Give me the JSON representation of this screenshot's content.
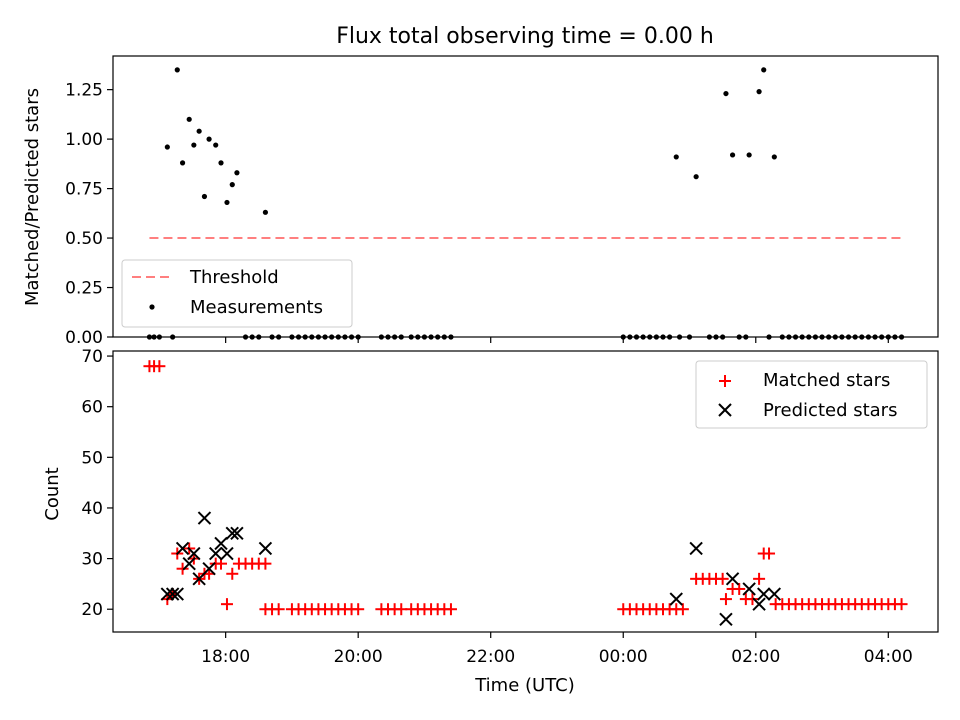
{
  "chart_data": [
    {
      "type": "scatter",
      "title": "Flux total observing time = 0.00 h",
      "xlabel": "",
      "ylabel": "Matched/Predicted stars",
      "xlim": [
        16.3,
        28.75
      ],
      "ylim": [
        0,
        1.42
      ],
      "x_ticks": [
        18,
        20,
        22,
        24,
        26,
        28
      ],
      "x_tick_labels": [],
      "y_ticks": [
        0.0,
        0.25,
        0.5,
        0.75,
        1.0,
        1.25
      ],
      "y_tick_labels": [
        "0.00",
        "0.25",
        "0.50",
        "0.75",
        "1.00",
        "1.25"
      ],
      "legend_position": "bottom-left",
      "threshold": {
        "name": "Threshold",
        "value": 0.5,
        "x_range": [
          16.85,
          28.2
        ],
        "color": "#ff7f7f"
      },
      "series": [
        {
          "name": "Measurements",
          "color": "#000000",
          "marker": "dot",
          "points": [
            [
              17.12,
              0.96
            ],
            [
              17.27,
              1.35
            ],
            [
              17.35,
              0.88
            ],
            [
              17.45,
              1.1
            ],
            [
              17.52,
              0.97
            ],
            [
              17.6,
              1.04
            ],
            [
              17.68,
              0.71
            ],
            [
              17.75,
              1.0
            ],
            [
              17.85,
              0.97
            ],
            [
              17.93,
              0.88
            ],
            [
              18.02,
              0.68
            ],
            [
              18.1,
              0.77
            ],
            [
              18.17,
              0.83
            ],
            [
              18.6,
              0.63
            ],
            [
              24.8,
              0.91
            ],
            [
              25.1,
              0.81
            ],
            [
              25.55,
              1.23
            ],
            [
              25.65,
              0.92
            ],
            [
              25.9,
              0.92
            ],
            [
              26.05,
              1.24
            ],
            [
              26.12,
              1.35
            ],
            [
              26.28,
              0.91
            ],
            [
              16.85,
              0
            ],
            [
              16.92,
              0
            ],
            [
              17.0,
              0
            ],
            [
              17.2,
              0
            ],
            [
              18.3,
              0
            ],
            [
              18.4,
              0
            ],
            [
              18.5,
              0
            ],
            [
              18.7,
              0
            ],
            [
              18.8,
              0
            ],
            [
              19.0,
              0
            ],
            [
              19.1,
              0
            ],
            [
              19.2,
              0
            ],
            [
              19.3,
              0
            ],
            [
              19.4,
              0
            ],
            [
              19.5,
              0
            ],
            [
              19.6,
              0
            ],
            [
              19.7,
              0
            ],
            [
              19.8,
              0
            ],
            [
              19.9,
              0
            ],
            [
              20.0,
              0
            ],
            [
              20.35,
              0
            ],
            [
              20.45,
              0
            ],
            [
              20.55,
              0
            ],
            [
              20.65,
              0
            ],
            [
              20.8,
              0
            ],
            [
              20.9,
              0
            ],
            [
              21.0,
              0
            ],
            [
              21.1,
              0
            ],
            [
              21.2,
              0
            ],
            [
              21.3,
              0
            ],
            [
              21.4,
              0
            ],
            [
              24.0,
              0
            ],
            [
              24.1,
              0
            ],
            [
              24.2,
              0
            ],
            [
              24.3,
              0
            ],
            [
              24.4,
              0
            ],
            [
              24.5,
              0
            ],
            [
              24.6,
              0
            ],
            [
              24.7,
              0
            ],
            [
              24.85,
              0
            ],
            [
              25.0,
              0
            ],
            [
              25.3,
              0
            ],
            [
              25.4,
              0
            ],
            [
              25.5,
              0
            ],
            [
              25.75,
              0
            ],
            [
              25.85,
              0
            ],
            [
              26.2,
              0
            ],
            [
              26.4,
              0
            ],
            [
              26.5,
              0
            ],
            [
              26.6,
              0
            ],
            [
              26.7,
              0
            ],
            [
              26.8,
              0
            ],
            [
              26.9,
              0
            ],
            [
              27.0,
              0
            ],
            [
              27.1,
              0
            ],
            [
              27.2,
              0
            ],
            [
              27.3,
              0
            ],
            [
              27.4,
              0
            ],
            [
              27.5,
              0
            ],
            [
              27.6,
              0
            ],
            [
              27.7,
              0
            ],
            [
              27.8,
              0
            ],
            [
              27.9,
              0
            ],
            [
              28.0,
              0
            ],
            [
              28.1,
              0
            ],
            [
              28.2,
              0
            ]
          ]
        }
      ]
    },
    {
      "type": "scatter",
      "title": "",
      "xlabel": "Time (UTC)",
      "ylabel": "Count",
      "xlim": [
        16.3,
        28.75
      ],
      "ylim": [
        15.5,
        71
      ],
      "x_ticks": [
        18,
        20,
        22,
        24,
        26,
        28
      ],
      "x_tick_labels": [
        "18:00",
        "20:00",
        "22:00",
        "00:00",
        "02:00",
        "04:00"
      ],
      "y_ticks": [
        20,
        30,
        40,
        50,
        60,
        70
      ],
      "y_tick_labels": [
        "20",
        "30",
        "40",
        "50",
        "60",
        "70"
      ],
      "legend_position": "top-right",
      "series": [
        {
          "name": "Matched stars",
          "color": "#ff0000",
          "marker": "plus",
          "points": [
            [
              16.85,
              68
            ],
            [
              16.92,
              68
            ],
            [
              17.0,
              68
            ],
            [
              17.12,
              22
            ],
            [
              17.2,
              23
            ],
            [
              17.27,
              31
            ],
            [
              17.35,
              28
            ],
            [
              17.45,
              32
            ],
            [
              17.52,
              30
            ],
            [
              17.6,
              26
            ],
            [
              17.68,
              27
            ],
            [
              17.75,
              27
            ],
            [
              17.85,
              29
            ],
            [
              17.93,
              29
            ],
            [
              18.02,
              21
            ],
            [
              18.1,
              27
            ],
            [
              18.2,
              29
            ],
            [
              18.3,
              29
            ],
            [
              18.4,
              29
            ],
            [
              18.5,
              29
            ],
            [
              18.6,
              29
            ],
            [
              18.6,
              20
            ],
            [
              18.7,
              20
            ],
            [
              18.8,
              20
            ],
            [
              19.0,
              20
            ],
            [
              19.1,
              20
            ],
            [
              19.2,
              20
            ],
            [
              19.3,
              20
            ],
            [
              19.4,
              20
            ],
            [
              19.5,
              20
            ],
            [
              19.6,
              20
            ],
            [
              19.7,
              20
            ],
            [
              19.8,
              20
            ],
            [
              19.9,
              20
            ],
            [
              20.0,
              20
            ],
            [
              20.35,
              20
            ],
            [
              20.45,
              20
            ],
            [
              20.55,
              20
            ],
            [
              20.65,
              20
            ],
            [
              20.8,
              20
            ],
            [
              20.9,
              20
            ],
            [
              21.0,
              20
            ],
            [
              21.1,
              20
            ],
            [
              21.2,
              20
            ],
            [
              21.3,
              20
            ],
            [
              21.4,
              20
            ],
            [
              24.0,
              20
            ],
            [
              24.1,
              20
            ],
            [
              24.2,
              20
            ],
            [
              24.3,
              20
            ],
            [
              24.4,
              20
            ],
            [
              24.5,
              20
            ],
            [
              24.6,
              20
            ],
            [
              24.7,
              20
            ],
            [
              24.8,
              20
            ],
            [
              24.9,
              20
            ],
            [
              25.1,
              26
            ],
            [
              25.2,
              26
            ],
            [
              25.3,
              26
            ],
            [
              25.4,
              26
            ],
            [
              25.5,
              26
            ],
            [
              25.55,
              22
            ],
            [
              25.65,
              24
            ],
            [
              25.75,
              24
            ],
            [
              25.85,
              22
            ],
            [
              25.95,
              22
            ],
            [
              26.05,
              26
            ],
            [
              26.12,
              31
            ],
            [
              26.2,
              31
            ],
            [
              26.3,
              21
            ],
            [
              26.4,
              21
            ],
            [
              26.5,
              21
            ],
            [
              26.6,
              21
            ],
            [
              26.7,
              21
            ],
            [
              26.8,
              21
            ],
            [
              26.9,
              21
            ],
            [
              27.0,
              21
            ],
            [
              27.1,
              21
            ],
            [
              27.2,
              21
            ],
            [
              27.3,
              21
            ],
            [
              27.4,
              21
            ],
            [
              27.5,
              21
            ],
            [
              27.6,
              21
            ],
            [
              27.7,
              21
            ],
            [
              27.8,
              21
            ],
            [
              27.9,
              21
            ],
            [
              28.0,
              21
            ],
            [
              28.1,
              21
            ],
            [
              28.2,
              21
            ]
          ]
        },
        {
          "name": "Predicted stars",
          "color": "#000000",
          "marker": "x",
          "points": [
            [
              17.12,
              23
            ],
            [
              17.2,
              23
            ],
            [
              17.27,
              23
            ],
            [
              17.35,
              32
            ],
            [
              17.45,
              29
            ],
            [
              17.52,
              31
            ],
            [
              17.6,
              26
            ],
            [
              17.68,
              38
            ],
            [
              17.75,
              28
            ],
            [
              17.85,
              31
            ],
            [
              17.93,
              33
            ],
            [
              18.02,
              31
            ],
            [
              18.1,
              35
            ],
            [
              18.17,
              35
            ],
            [
              18.6,
              32
            ],
            [
              24.8,
              22
            ],
            [
              25.1,
              32
            ],
            [
              25.55,
              18
            ],
            [
              25.65,
              26
            ],
            [
              25.9,
              24
            ],
            [
              26.05,
              21
            ],
            [
              26.12,
              23
            ],
            [
              26.28,
              23
            ]
          ]
        }
      ]
    }
  ]
}
